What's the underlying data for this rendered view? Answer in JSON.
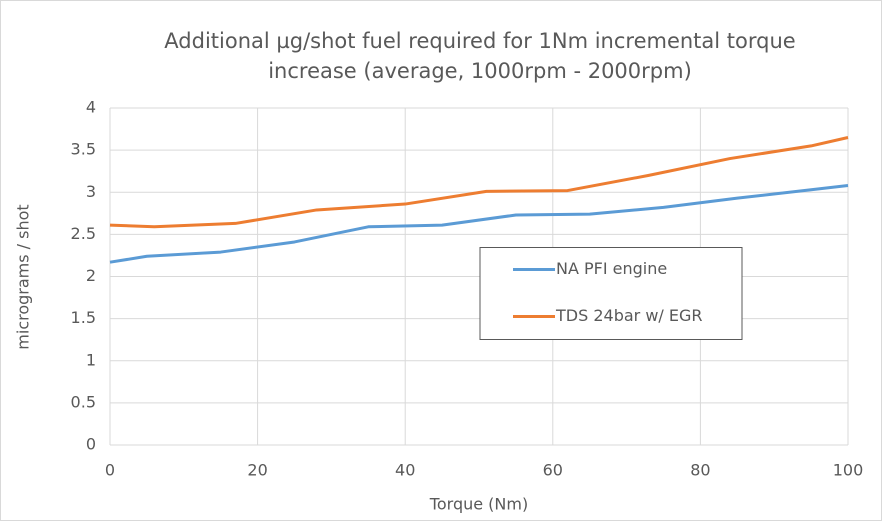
{
  "chart_data": {
    "type": "line",
    "title": [
      "Additional µg/shot  fuel required for 1Nm incremental torque",
      "increase (average, 1000rpm - 2000rpm)"
    ],
    "xlabel": "Torque (Nm)",
    "ylabel": "micrograms / shot",
    "xlim": [
      0,
      100
    ],
    "xticks": [
      0,
      20,
      40,
      60,
      80,
      100
    ],
    "ylim": [
      0,
      4
    ],
    "yticks": [
      0,
      0.5,
      1,
      1.5,
      2,
      2.5,
      3,
      3.5,
      4
    ],
    "grid": true,
    "legend": "center-right",
    "series": [
      {
        "name": "NA PFI engine",
        "color": "#5b9bd5",
        "x": [
          0,
          5,
          15,
          25,
          35,
          45,
          55,
          65,
          75,
          85,
          95,
          100
        ],
        "values": [
          2.17,
          2.24,
          2.29,
          2.41,
          2.59,
          2.61,
          2.73,
          2.74,
          2.82,
          2.93,
          3.03,
          3.08
        ]
      },
      {
        "name": "TDS 24bar w/ EGR",
        "color": "#ed7d31",
        "x": [
          0,
          6,
          17,
          28,
          40,
          51,
          62,
          73,
          84,
          95,
          100
        ],
        "values": [
          2.61,
          2.59,
          2.63,
          2.79,
          2.86,
          3.01,
          3.02,
          3.2,
          3.4,
          3.55,
          3.65
        ]
      }
    ]
  }
}
